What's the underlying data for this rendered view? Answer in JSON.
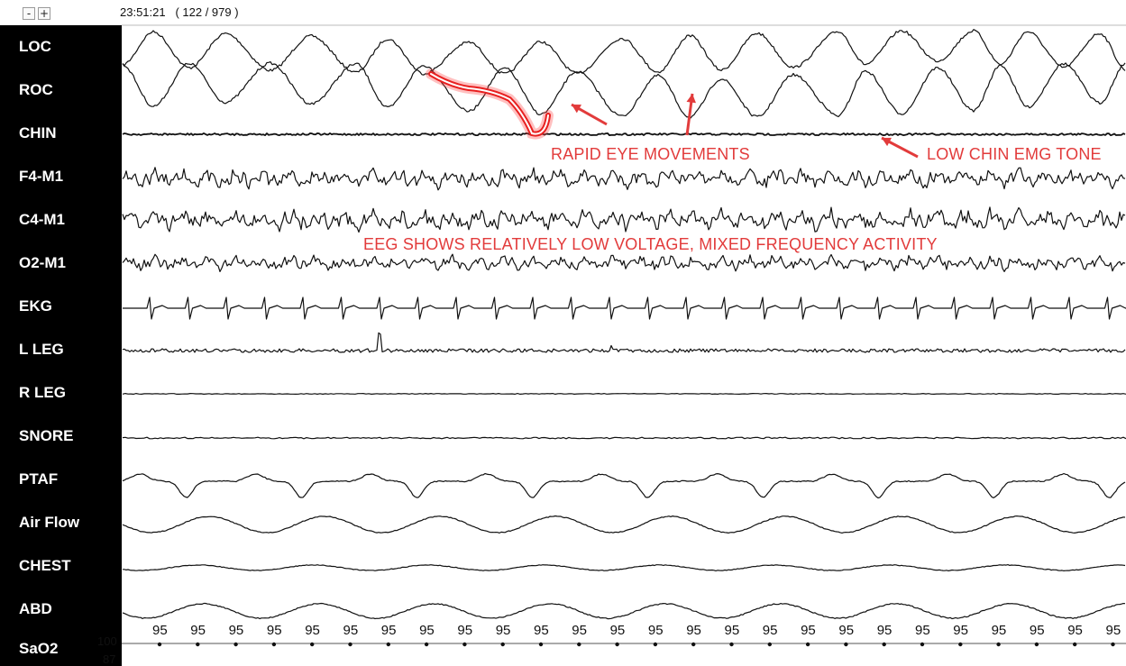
{
  "toolbar": {
    "zoom_out_label": "-",
    "zoom_in_label": "+",
    "timestamp": "23:51:21",
    "epoch": "( 122 / 979 )"
  },
  "channels": [
    "LOC",
    "ROC",
    "CHIN",
    "F4-M1",
    "C4-M1",
    "O2-M1",
    "EKG",
    "L LEG",
    "R LEG",
    "SNORE",
    "PTAF",
    "Air Flow",
    "CHEST",
    "ABD",
    "SaO2"
  ],
  "annotations": {
    "rem": "RAPID EYE MOVEMENTS",
    "chin": "LOW CHIN EMG TONE",
    "eeg": "EEG SHOWS RELATIVELY LOW VOLTAGE, MIXED FREQUENCY ACTIVITY"
  },
  "sao2": {
    "scale_max": "100",
    "scale_min": "87",
    "values": [
      "95",
      "95",
      "95",
      "95",
      "95",
      "95",
      "95",
      "95",
      "95",
      "95",
      "95",
      "95",
      "95",
      "95",
      "95",
      "95",
      "95",
      "95",
      "95",
      "95",
      "95",
      "95",
      "95",
      "95",
      "95",
      "95",
      "95"
    ]
  },
  "colors": {
    "annotation": "#e23b3b",
    "highlight": "#ff3b3b",
    "trace": "#111111",
    "label_panel": "#000000"
  }
}
